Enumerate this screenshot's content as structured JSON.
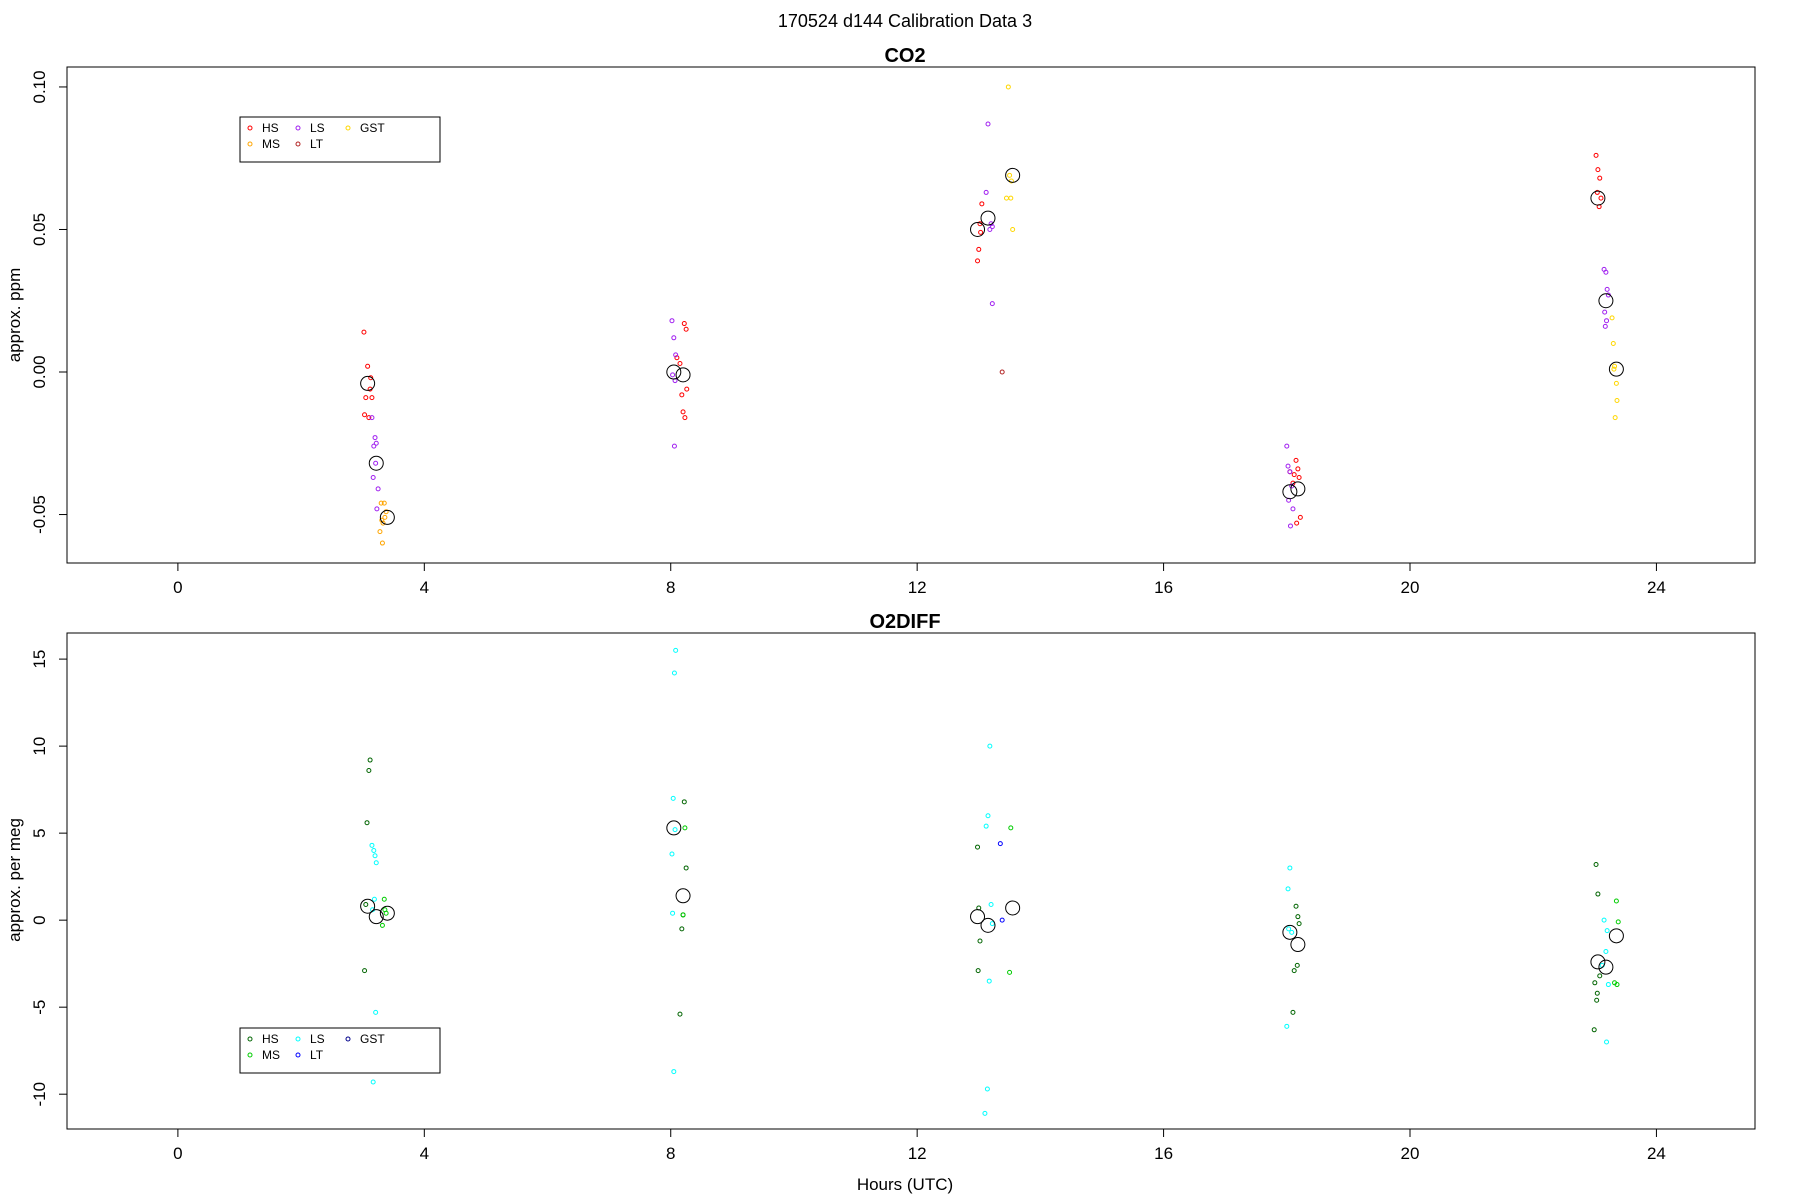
{
  "figure": {
    "suptitle": "170524   d144   Calibration Data 3",
    "xlabel": "Hours (UTC)"
  },
  "chart_data": [
    {
      "type": "scatter",
      "title": "CO2",
      "xlabel": "",
      "ylabel": "approx. ppm",
      "xlim": [
        -1.8,
        25.6
      ],
      "ylim": [
        -0.067,
        0.107
      ],
      "xticks": [
        0,
        4,
        8,
        12,
        16,
        20,
        24
      ],
      "yticks": [
        -0.05,
        0.0,
        0.05,
        0.1
      ],
      "ytick_labels": [
        "-0.05",
        "0.00",
        "0.05",
        "0.10"
      ],
      "legend": {
        "placement": "top-left",
        "entries": [
          "HS",
          "MS",
          "LS",
          "LT",
          "GST"
        ]
      },
      "series": [
        {
          "name": "HS",
          "color": "#ff0000",
          "x": [
            3.02,
            3.08,
            3.12,
            3.15,
            3.05,
            3.1,
            3.03,
            3.13,
            8.1,
            8.15,
            8.22,
            8.25,
            8.18,
            8.2,
            8.26,
            8.23,
            12.98,
            13.0,
            13.02,
            13.03,
            13.05,
            23.02,
            23.05,
            23.08,
            23.1,
            23.04,
            23.07,
            18.05,
            18.12,
            18.15,
            18.18,
            18.2,
            18.1,
            18.22,
            18.16
          ],
          "y": [
            0.014,
            0.002,
            -0.006,
            -0.009,
            -0.009,
            -0.016,
            -0.015,
            -0.002,
            0.005,
            0.003,
            0.017,
            0.015,
            -0.008,
            -0.014,
            -0.006,
            -0.016,
            0.039,
            0.043,
            0.052,
            0.049,
            0.059,
            0.076,
            0.071,
            0.068,
            0.061,
            0.063,
            0.058,
            -0.035,
            -0.036,
            -0.031,
            -0.034,
            -0.037,
            -0.039,
            -0.051,
            -0.053
          ]
        },
        {
          "name": "MS",
          "color": "#ffa500",
          "x": [
            3.3,
            3.35,
            3.38,
            3.33,
            3.28,
            3.32,
            3.36,
            3.31
          ],
          "y": [
            -0.046,
            -0.046,
            -0.049,
            -0.053,
            -0.056,
            -0.06,
            -0.051,
            -0.052
          ]
        },
        {
          "name": "LS",
          "color": "#a020f0",
          "x": [
            3.15,
            3.2,
            3.22,
            3.18,
            3.21,
            3.25,
            3.17,
            3.23,
            8.02,
            8.05,
            8.08,
            8.03,
            8.07,
            8.06,
            13.15,
            13.12,
            13.18,
            13.2,
            13.22,
            18.0,
            18.02,
            18.05,
            18.08,
            18.03,
            18.1,
            18.06,
            23.15,
            23.18,
            23.2,
            23.22,
            23.16,
            23.19,
            23.17,
            13.22
          ],
          "y": [
            -0.016,
            -0.023,
            -0.025,
            -0.026,
            -0.032,
            -0.041,
            -0.037,
            -0.048,
            0.018,
            0.012,
            0.006,
            -0.001,
            -0.003,
            -0.026,
            0.087,
            0.063,
            0.05,
            0.052,
            0.024,
            -0.026,
            -0.033,
            -0.035,
            -0.04,
            -0.045,
            -0.048,
            -0.054,
            0.036,
            0.035,
            0.029,
            0.027,
            0.021,
            0.018,
            0.016,
            0.051
          ]
        },
        {
          "name": "LT",
          "color": "#b22222",
          "x": [
            13.38
          ],
          "y": [
            0.0
          ]
        },
        {
          "name": "GST",
          "color": "#ffd700",
          "x": [
            13.48,
            13.5,
            13.45,
            13.52,
            13.55,
            13.53,
            23.28,
            23.3,
            23.32,
            23.35,
            23.36,
            23.33,
            23.31
          ],
          "y": [
            0.1,
            0.069,
            0.061,
            0.061,
            0.05,
            0.067,
            0.019,
            0.01,
            0.002,
            -0.004,
            -0.01,
            -0.016,
            0.001
          ]
        },
        {
          "name": "",
          "color": "#000000",
          "marker": "large-circle",
          "x": [
            3.08,
            3.22,
            3.4,
            8.05,
            8.2,
            12.98,
            13.15,
            13.55,
            18.05,
            18.18,
            23.05,
            23.18,
            23.35
          ],
          "y": [
            -0.004,
            -0.032,
            -0.051,
            0.0,
            -0.001,
            0.05,
            0.054,
            0.069,
            -0.042,
            -0.041,
            0.061,
            0.025,
            0.001
          ]
        }
      ]
    },
    {
      "type": "scatter",
      "title": "O2DIFF",
      "xlabel": "Hours (UTC)",
      "ylabel": "approx. per meg",
      "xlim": [
        -1.8,
        25.6
      ],
      "ylim": [
        -12.0,
        16.5
      ],
      "xticks": [
        0,
        4,
        8,
        12,
        16,
        20,
        24
      ],
      "yticks": [
        -10,
        -5,
        0,
        5,
        10,
        15
      ],
      "ytick_labels": [
        "-10",
        "-5",
        "0",
        "5",
        "10",
        "15"
      ],
      "legend": {
        "placement": "bottom-left",
        "entries": [
          "HS",
          "MS",
          "LS",
          "LT",
          "GST"
        ]
      },
      "series": [
        {
          "name": "HS",
          "color": "#006400",
          "x": [
            3.12,
            3.1,
            3.07,
            3.05,
            3.03,
            8.22,
            8.25,
            8.2,
            8.18,
            8.15,
            12.98,
            13.0,
            13.02,
            12.99,
            18.15,
            18.18,
            18.2,
            18.17,
            18.12,
            18.1,
            23.02,
            23.05,
            23.08,
            23.0,
            23.04,
            23.03,
            22.99
          ],
          "y": [
            9.2,
            8.6,
            5.6,
            0.9,
            -2.9,
            6.8,
            3.0,
            0.3,
            -0.5,
            -5.4,
            4.2,
            0.7,
            -1.2,
            -2.9,
            0.8,
            0.2,
            -0.2,
            -2.6,
            -2.9,
            -5.3,
            3.2,
            1.5,
            -3.2,
            -3.6,
            -4.2,
            -4.6,
            -6.3
          ]
        },
        {
          "name": "MS",
          "color": "#00cd00",
          "x": [
            3.35,
            3.38,
            3.32,
            3.36,
            8.23,
            8.2,
            13.52,
            13.5,
            23.35,
            23.38,
            23.32,
            23.36
          ],
          "y": [
            1.2,
            0.4,
            -0.3,
            0.6,
            5.3,
            0.3,
            5.3,
            -3.0,
            1.1,
            -0.1,
            -3.6,
            -3.7
          ]
        },
        {
          "name": "LS",
          "color": "#00ffff",
          "x": [
            3.15,
            3.18,
            3.2,
            3.22,
            3.19,
            3.21,
            3.17,
            3.16,
            8.08,
            8.06,
            8.04,
            8.02,
            8.03,
            8.05,
            8.07,
            13.18,
            13.15,
            13.12,
            13.2,
            13.17,
            13.22,
            13.14,
            13.1,
            18.05,
            18.02,
            18.08,
            18.0,
            18.03,
            23.15,
            23.18,
            23.2,
            23.22,
            23.12,
            23.19
          ],
          "y": [
            4.3,
            4.0,
            3.7,
            3.3,
            1.2,
            -5.3,
            -9.3,
            0.6,
            15.5,
            14.2,
            7.0,
            3.8,
            0.4,
            -8.7,
            5.2,
            10.0,
            6.0,
            5.4,
            0.9,
            -3.5,
            -0.2,
            -9.7,
            -11.1,
            3.0,
            1.8,
            -0.7,
            -6.1,
            -0.5,
            0.0,
            -1.8,
            -0.6,
            -3.7,
            -2.6,
            -7.0
          ]
        },
        {
          "name": "LT",
          "color": "#0000ff",
          "x": [
            13.35,
            13.38
          ],
          "y": [
            4.4,
            0.0
          ]
        },
        {
          "name": "GST",
          "color": "#00008b",
          "x": [],
          "y": []
        },
        {
          "name": "",
          "color": "#000000",
          "marker": "large-circle",
          "x": [
            3.08,
            3.22,
            3.4,
            8.05,
            8.2,
            12.98,
            13.15,
            13.55,
            18.05,
            18.18,
            23.05,
            23.18,
            23.35
          ],
          "y": [
            0.8,
            0.2,
            0.4,
            5.3,
            1.4,
            0.2,
            -0.3,
            0.7,
            -0.7,
            -1.4,
            -2.4,
            -2.7,
            -0.9
          ]
        }
      ]
    }
  ]
}
